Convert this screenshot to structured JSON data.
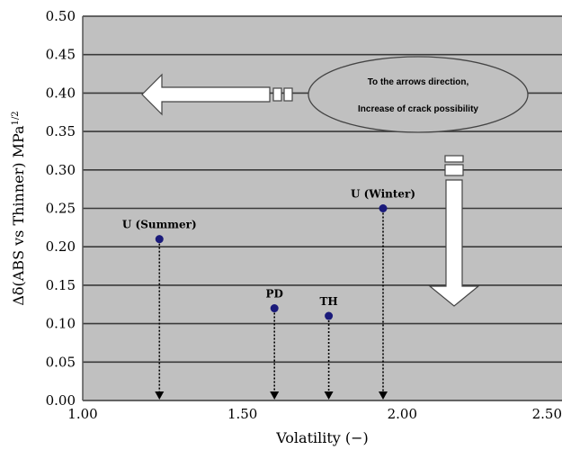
{
  "chart_data": {
    "type": "scatter",
    "title": "",
    "xlabel": "Volatility (−)",
    "ylabel_main": "Δδ(ABS vs Thinner) MPa",
    "ylabel_sup": "1/2",
    "xlim": [
      1.0,
      2.5
    ],
    "ylim": [
      0.0,
      0.5
    ],
    "x_ticks": [
      "1.00",
      "1.50",
      "2.00",
      "2.50"
    ],
    "y_ticks": [
      "0.00",
      "0.05",
      "0.10",
      "0.15",
      "0.20",
      "0.25",
      "0.30",
      "0.35",
      "0.40",
      "0.45",
      "0.50"
    ],
    "grid": true,
    "points": [
      {
        "label": "U (Summer)",
        "x": 1.24,
        "y": 0.21
      },
      {
        "label": "PD",
        "x": 1.6,
        "y": 0.12
      },
      {
        "label": "TH",
        "x": 1.77,
        "y": 0.11
      },
      {
        "label": "U (Winter)",
        "x": 1.94,
        "y": 0.25
      }
    ],
    "annotation": {
      "line1": "To the arrows direction,",
      "line2": "Increase of crack possibility"
    },
    "colors": {
      "plot_bg": "#c0c0c0",
      "grid": "#3a3a3a",
      "point": "#1a1a7a",
      "arrow_fill": "#ffffff"
    }
  }
}
